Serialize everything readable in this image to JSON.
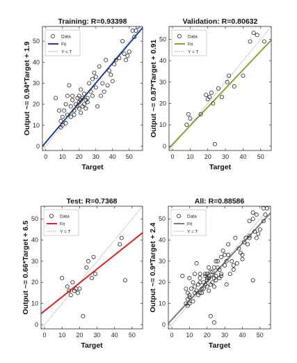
{
  "figure": {
    "colors": {
      "background": "#ffffff",
      "axis": "#262626",
      "identity_line": "#9a9a9a",
      "marker": "#262626"
    }
  },
  "chart_data": [
    {
      "type": "scatter",
      "title": "Training: R=0.93398",
      "xlabel": "Target",
      "ylabel": "Output ~= 0.94*Target + 1.9",
      "xlim": [
        -2,
        58
      ],
      "ylim": [
        -2,
        57
      ],
      "xticks": [
        0,
        10,
        20,
        30,
        40,
        50
      ],
      "yticks": [
        0,
        10,
        20,
        30,
        40,
        50
      ],
      "grid": false,
      "fit": {
        "slope": 0.94,
        "intercept": 1.9,
        "color": "#1a3c9e"
      },
      "legend": {
        "location": "top-left",
        "entries": [
          "Data",
          "Fit",
          "Y = T"
        ]
      },
      "points": [
        [
          6,
          23
        ],
        [
          8,
          17
        ],
        [
          9,
          9
        ],
        [
          9,
          12
        ],
        [
          10,
          10
        ],
        [
          10,
          14
        ],
        [
          11,
          17
        ],
        [
          12,
          11
        ],
        [
          12,
          20
        ],
        [
          13,
          15
        ],
        [
          13,
          24
        ],
        [
          14,
          29
        ],
        [
          15,
          19
        ],
        [
          15,
          14
        ],
        [
          16,
          22
        ],
        [
          16,
          24
        ],
        [
          17,
          15
        ],
        [
          17,
          17
        ],
        [
          18,
          20
        ],
        [
          19,
          19
        ],
        [
          19,
          23
        ],
        [
          20,
          18
        ],
        [
          20,
          21
        ],
        [
          20,
          24
        ],
        [
          21,
          16
        ],
        [
          21,
          22
        ],
        [
          21,
          27
        ],
        [
          22,
          19
        ],
        [
          22,
          23
        ],
        [
          23,
          20
        ],
        [
          23,
          25
        ],
        [
          24,
          18
        ],
        [
          24,
          22
        ],
        [
          25,
          21
        ],
        [
          25,
          23
        ],
        [
          26,
          30
        ],
        [
          27,
          26
        ],
        [
          28,
          32
        ],
        [
          28,
          24
        ],
        [
          29,
          35
        ],
        [
          30,
          33
        ],
        [
          30,
          28
        ],
        [
          31,
          19
        ],
        [
          32,
          38
        ],
        [
          33,
          24
        ],
        [
          34,
          30
        ],
        [
          35,
          26
        ],
        [
          36,
          41
        ],
        [
          37,
          29
        ],
        [
          38,
          36
        ],
        [
          40,
          31
        ],
        [
          42,
          41
        ],
        [
          44,
          42
        ],
        [
          46,
          50
        ],
        [
          47,
          44
        ],
        [
          48,
          41
        ],
        [
          49,
          43
        ],
        [
          50,
          45
        ],
        [
          52,
          55
        ],
        [
          53,
          52
        ],
        [
          54,
          55
        ],
        [
          55,
          57
        ],
        [
          41,
          39
        ],
        [
          39,
          34
        ]
      ]
    },
    {
      "type": "scatter",
      "title": "Validation: R=0.80632",
      "xlabel": "Target",
      "ylabel": "Output ~= 0.87*Target + 0.91",
      "xlim": [
        -2,
        56
      ],
      "ylim": [
        -2,
        56
      ],
      "xticks": [
        0,
        10,
        20,
        30,
        40,
        50
      ],
      "yticks": [
        0,
        10,
        20,
        30,
        40,
        50
      ],
      "grid": false,
      "fit": {
        "slope": 0.87,
        "intercept": 0.91,
        "color": "#77ac30"
      },
      "legend": {
        "location": "top-left",
        "entries": [
          "Data",
          "Fit",
          "Y = T"
        ]
      },
      "points": [
        [
          8,
          10
        ],
        [
          9,
          15
        ],
        [
          10,
          13
        ],
        [
          16,
          15
        ],
        [
          19,
          24
        ],
        [
          20,
          22
        ],
        [
          21,
          23
        ],
        [
          22,
          25
        ],
        [
          23,
          20
        ],
        [
          24,
          1
        ],
        [
          26,
          27
        ],
        [
          28,
          23
        ],
        [
          31,
          30
        ],
        [
          32,
          33
        ],
        [
          35,
          28
        ],
        [
          40,
          33
        ],
        [
          44,
          49
        ],
        [
          46,
          53
        ],
        [
          48,
          52
        ],
        [
          52,
          49
        ]
      ]
    },
    {
      "type": "scatter",
      "title": "Test: R=0.7368",
      "xlabel": "Target",
      "ylabel": "Output ~= 0.66*Target + 6.5",
      "xlim": [
        -2,
        56
      ],
      "ylim": [
        -2,
        56
      ],
      "xticks": [
        0,
        10,
        20,
        30,
        40,
        50
      ],
      "yticks": [
        0,
        10,
        20,
        30,
        40,
        50
      ],
      "grid": false,
      "fit": {
        "slope": 0.66,
        "intercept": 6.5,
        "color": "#e0231c"
      },
      "legend": {
        "location": "top-left",
        "entries": [
          "Data",
          "Fit",
          "Y = T"
        ]
      },
      "points": [
        [
          10,
          22
        ],
        [
          13,
          18
        ],
        [
          14,
          16
        ],
        [
          15,
          14
        ],
        [
          16,
          20
        ],
        [
          17,
          16
        ],
        [
          18,
          17
        ],
        [
          19,
          15
        ],
        [
          20,
          17
        ],
        [
          22,
          4
        ],
        [
          24,
          27
        ],
        [
          25,
          30
        ],
        [
          27,
          22
        ],
        [
          28,
          32
        ],
        [
          29,
          24
        ],
        [
          43,
          38
        ],
        [
          44,
          41
        ],
        [
          46,
          21
        ]
      ]
    },
    {
      "type": "scatter",
      "title": "All: R=0.88586",
      "xlabel": "Target",
      "ylabel": "Output ~= 0.9*Target + 2.4",
      "xlim": [
        -2,
        56
      ],
      "ylim": [
        -2,
        56
      ],
      "xticks": [
        0,
        10,
        20,
        30,
        40,
        50
      ],
      "yticks": [
        0,
        10,
        20,
        30,
        40,
        50
      ],
      "grid": false,
      "fit": {
        "slope": 0.9,
        "intercept": 2.4,
        "color": "#7a7a7a"
      },
      "legend": {
        "location": "top-left",
        "entries": [
          "Data",
          "Fit",
          "Y = T"
        ]
      },
      "points": [
        [
          6,
          23
        ],
        [
          8,
          17
        ],
        [
          8,
          10
        ],
        [
          9,
          9
        ],
        [
          9,
          15
        ],
        [
          9,
          12
        ],
        [
          10,
          10
        ],
        [
          10,
          13
        ],
        [
          10,
          22
        ],
        [
          10,
          14
        ],
        [
          11,
          17
        ],
        [
          12,
          11
        ],
        [
          12,
          20
        ],
        [
          13,
          15
        ],
        [
          13,
          18
        ],
        [
          13,
          24
        ],
        [
          14,
          16
        ],
        [
          14,
          29
        ],
        [
          15,
          14
        ],
        [
          15,
          19
        ],
        [
          16,
          22
        ],
        [
          16,
          15
        ],
        [
          16,
          24
        ],
        [
          16,
          20
        ],
        [
          17,
          15
        ],
        [
          17,
          17
        ],
        [
          18,
          20
        ],
        [
          18,
          17
        ],
        [
          19,
          19
        ],
        [
          19,
          23
        ],
        [
          19,
          24
        ],
        [
          20,
          18
        ],
        [
          20,
          21
        ],
        [
          20,
          22
        ],
        [
          20,
          24
        ],
        [
          21,
          16
        ],
        [
          21,
          22
        ],
        [
          21,
          23
        ],
        [
          21,
          27
        ],
        [
          22,
          19
        ],
        [
          22,
          25
        ],
        [
          22,
          4
        ],
        [
          23,
          20
        ],
        [
          23,
          25
        ],
        [
          24,
          1
        ],
        [
          24,
          18
        ],
        [
          24,
          22
        ],
        [
          24,
          27
        ],
        [
          25,
          21
        ],
        [
          25,
          23
        ],
        [
          25,
          30
        ],
        [
          26,
          27
        ],
        [
          26,
          30
        ],
        [
          27,
          26
        ],
        [
          27,
          22
        ],
        [
          28,
          32
        ],
        [
          28,
          24
        ],
        [
          28,
          23
        ],
        [
          29,
          35
        ],
        [
          30,
          33
        ],
        [
          30,
          28
        ],
        [
          31,
          19
        ],
        [
          31,
          30
        ],
        [
          32,
          38
        ],
        [
          32,
          33
        ],
        [
          33,
          24
        ],
        [
          34,
          30
        ],
        [
          35,
          26
        ],
        [
          35,
          28
        ],
        [
          36,
          41
        ],
        [
          37,
          29
        ],
        [
          38,
          36
        ],
        [
          39,
          34
        ],
        [
          40,
          31
        ],
        [
          40,
          33
        ],
        [
          41,
          39
        ],
        [
          42,
          41
        ],
        [
          43,
          38
        ],
        [
          44,
          42
        ],
        [
          44,
          49
        ],
        [
          44,
          41
        ],
        [
          46,
          50
        ],
        [
          46,
          53
        ],
        [
          46,
          21
        ],
        [
          47,
          44
        ],
        [
          48,
          41
        ],
        [
          48,
          52
        ],
        [
          49,
          43
        ],
        [
          50,
          45
        ],
        [
          52,
          55
        ],
        [
          52,
          49
        ],
        [
          53,
          52
        ],
        [
          54,
          55
        ],
        [
          55,
          57
        ]
      ]
    }
  ]
}
